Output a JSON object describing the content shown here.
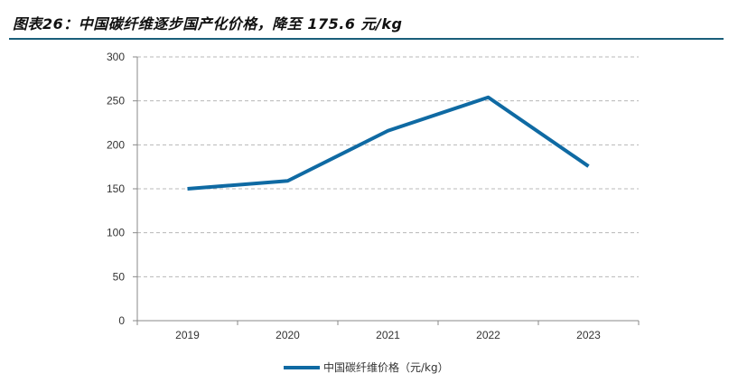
{
  "figure": {
    "title": "图表26：中国碳纤维逐步国产化价格，降至 175.6 元/kg"
  },
  "chart_data": {
    "type": "line",
    "categories": [
      "2019",
      "2020",
      "2021",
      "2022",
      "2023"
    ],
    "series": [
      {
        "name": "中国碳纤维价格（元/kg）",
        "values": [
          150,
          159,
          216,
          254,
          175.6
        ],
        "color": "#0f6aa3"
      }
    ],
    "ylim": [
      0,
      300
    ],
    "yticks": [
      0,
      50,
      100,
      150,
      200,
      250,
      300
    ],
    "grid": true,
    "legend": "bottom-center",
    "xlabel": "",
    "ylabel": ""
  }
}
